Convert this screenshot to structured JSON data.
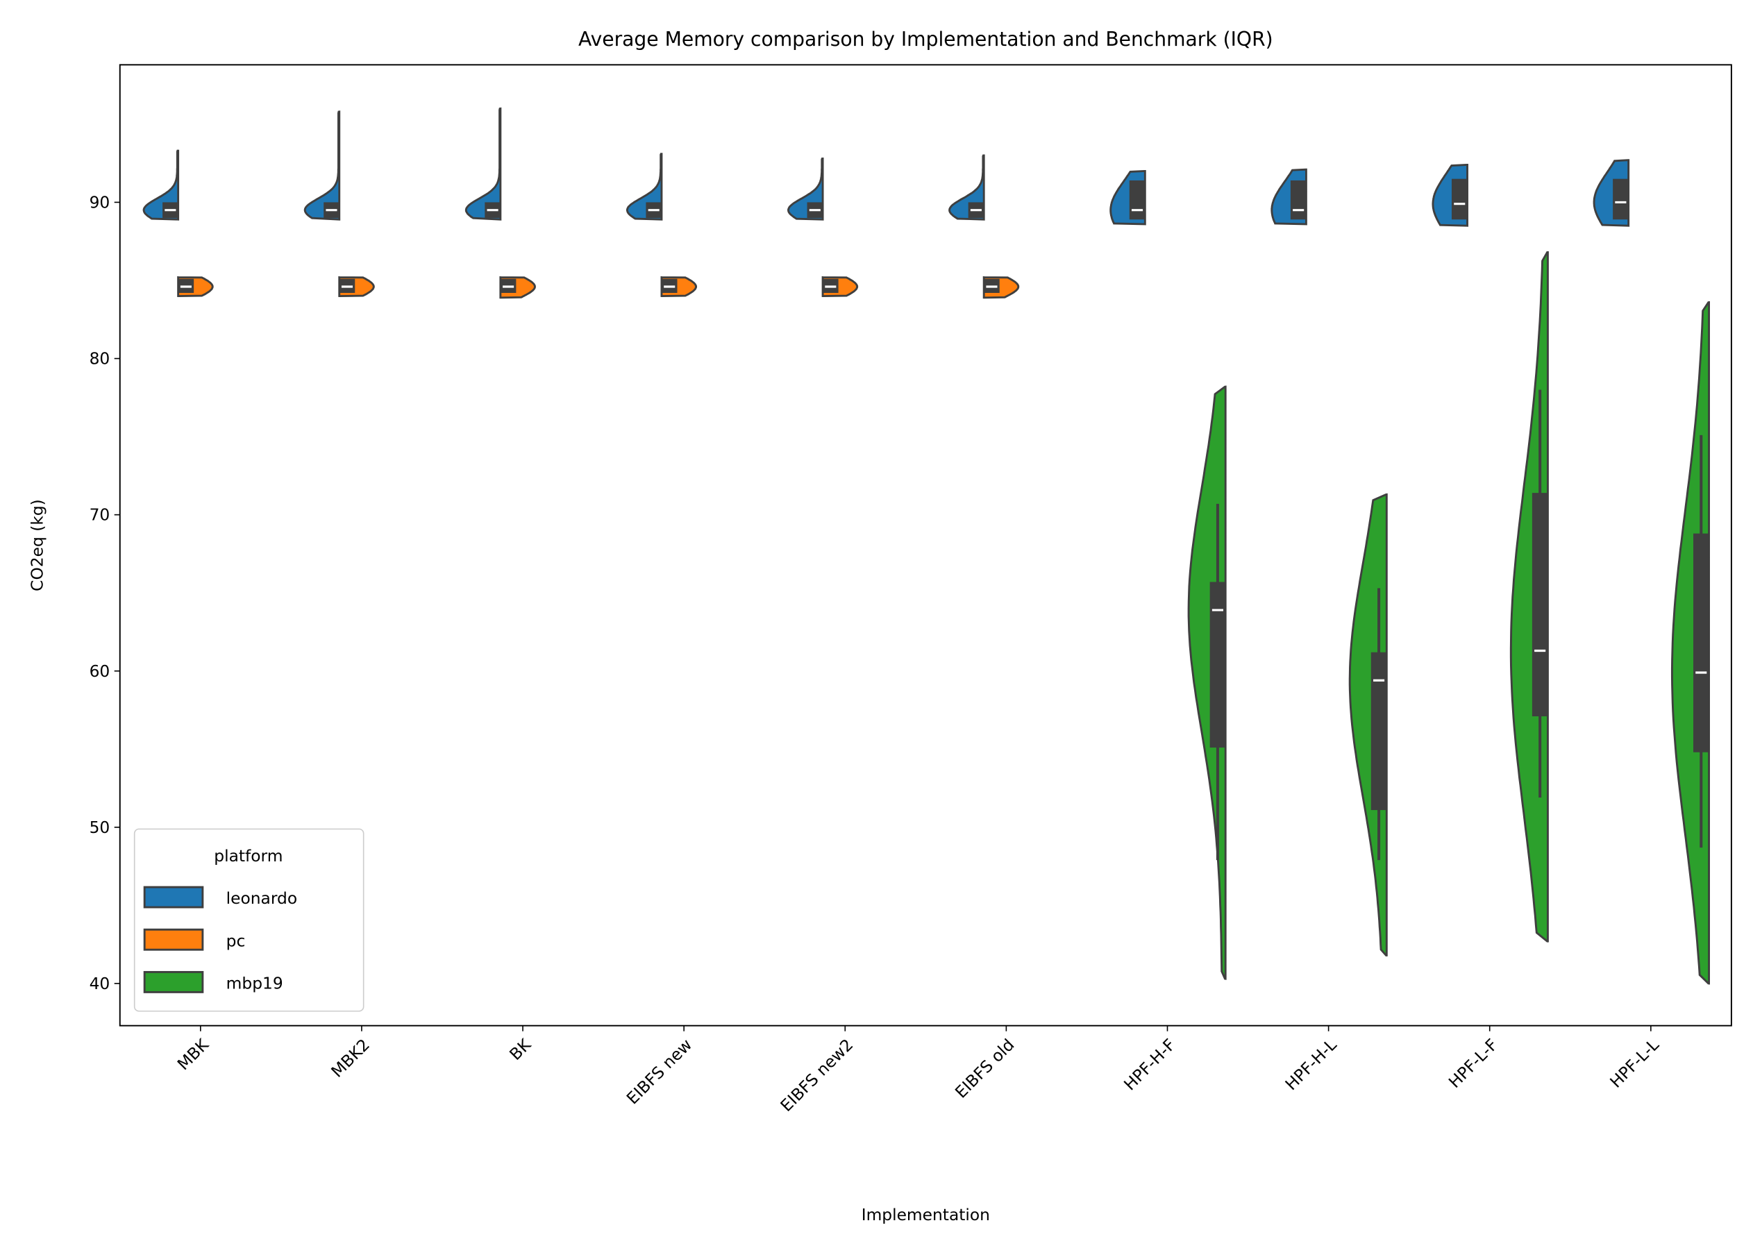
{
  "chart_data": {
    "type": "violin",
    "title": "Average Memory comparison by Implementation and Benchmark (IQR)",
    "x_label": "Implementation",
    "y_label": "CO2eq (kg)",
    "categories": [
      "MBK",
      "MBK2",
      "BK",
      "EIBFS new",
      "EIBFS new2",
      "EIBFS old",
      "HPF-H-F",
      "HPF-H-L",
      "HPF-L-F",
      "HPF-L-L"
    ],
    "ylim": [
      37.3,
      98.8
    ],
    "yticks": [
      40,
      50,
      60,
      70,
      80,
      90
    ],
    "legend_title": "platform",
    "legend_loc": "lower left",
    "series": [
      {
        "name": "leonardo",
        "color": "#1f77b4",
        "min": [
          88.9,
          88.9,
          88.9,
          88.9,
          88.9,
          88.9,
          88.6,
          88.6,
          88.5,
          88.5
        ],
        "q1": [
          89.0,
          89.0,
          89.0,
          89.0,
          89.0,
          89.0,
          88.9,
          88.9,
          88.9,
          88.9
        ],
        "median": [
          89.5,
          89.5,
          89.5,
          89.5,
          89.5,
          89.5,
          89.5,
          89.5,
          89.9,
          90.0
        ],
        "q3": [
          90.0,
          90.0,
          90.0,
          90.0,
          90.0,
          90.0,
          91.4,
          91.4,
          91.5,
          91.5
        ],
        "max": [
          93.3,
          95.8,
          96.0,
          93.1,
          92.8,
          93.0,
          92.0,
          92.1,
          92.4,
          92.7
        ]
      },
      {
        "name": "pc",
        "color": "#ff7f0e",
        "min": [
          84.0,
          84.0,
          83.9,
          84.0,
          84.0,
          83.9,
          null,
          null,
          null,
          null
        ],
        "q1": [
          84.2,
          84.2,
          84.2,
          84.2,
          84.2,
          84.2,
          null,
          null,
          null,
          null
        ],
        "median": [
          84.6,
          84.6,
          84.6,
          84.6,
          84.6,
          84.6,
          null,
          null,
          null,
          null
        ],
        "q3": [
          85.1,
          85.1,
          85.1,
          85.1,
          85.1,
          85.1,
          null,
          null,
          null,
          null
        ],
        "max": [
          85.2,
          85.2,
          85.2,
          85.2,
          85.2,
          85.2,
          null,
          null,
          null,
          null
        ]
      },
      {
        "name": "mbp19",
        "color": "#2ca02c",
        "min": [
          null,
          null,
          null,
          null,
          null,
          null,
          40.3,
          41.8,
          42.7,
          40.0
        ],
        "whisker_low": [
          null,
          null,
          null,
          null,
          null,
          null,
          47.9,
          47.9,
          51.9,
          48.7
        ],
        "q1": [
          null,
          null,
          null,
          null,
          null,
          null,
          55.1,
          51.1,
          57.1,
          54.8
        ],
        "median": [
          null,
          null,
          null,
          null,
          null,
          null,
          63.9,
          59.4,
          61.3,
          59.9
        ],
        "q3": [
          null,
          null,
          null,
          null,
          null,
          null,
          65.7,
          61.2,
          71.4,
          68.8
        ],
        "whisker_high": [
          null,
          null,
          null,
          null,
          null,
          null,
          70.7,
          65.3,
          78.0,
          75.1
        ],
        "max": [
          null,
          null,
          null,
          null,
          null,
          null,
          78.2,
          71.3,
          86.8,
          83.6
        ]
      }
    ]
  }
}
